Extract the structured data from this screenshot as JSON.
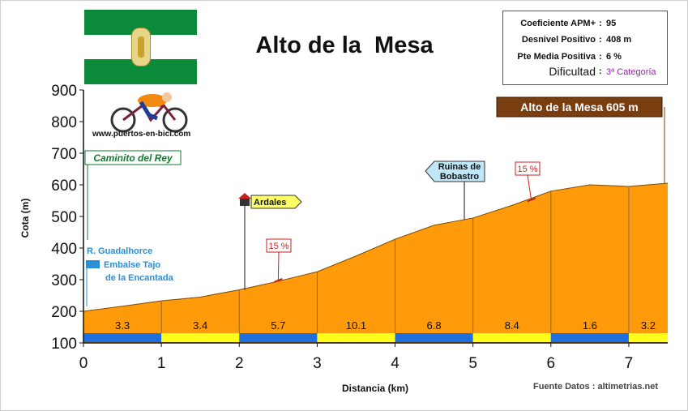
{
  "title": "Alto de la  Mesa",
  "info": {
    "rows": [
      {
        "label": "Coeficiente APM+",
        "sep": ":",
        "value": "95"
      },
      {
        "label": "Desnivel Positivo",
        "sep": ":",
        "value": "408 m"
      },
      {
        "label": "Pte Media Positiva",
        "sep": ":",
        "value": "6 %"
      },
      {
        "label": "Dificultad",
        "sep": ":",
        "value": "3ª Categoría"
      }
    ]
  },
  "logo_text": "www.puertos-en-bici.com",
  "source": "Fuente Datos : altimetrias.net",
  "colors": {
    "profile_fill": "#ff9a0a",
    "summit_box": "#7a3d10",
    "ramp_red": "#cc1f1f",
    "segment_blue": "#1e6fe0",
    "segment_yellow": "#ffff1a",
    "water_blue": "#2a8fd6",
    "trail_green": "#127a2d"
  },
  "chart_data": {
    "type": "area",
    "title": "Alto de la  Mesa",
    "xlabel": "Distancia (km)",
    "ylabel": "Cota (m)",
    "xlim": [
      0,
      7.5
    ],
    "ylim": [
      100,
      900
    ],
    "xticks": [
      "0",
      "1",
      "2",
      "3",
      "4",
      "5",
      "6",
      "7"
    ],
    "yticks": [
      "100",
      "200",
      "300",
      "400",
      "500",
      "600",
      "700",
      "800",
      "900"
    ],
    "grid": false,
    "profile": {
      "x": [
        0,
        0.5,
        1.0,
        1.5,
        2.0,
        2.5,
        3.0,
        3.5,
        4.0,
        4.5,
        5.0,
        5.5,
        6.0,
        6.5,
        7.0,
        7.5
      ],
      "y": [
        200,
        216,
        233,
        245,
        268,
        295,
        325,
        375,
        428,
        472,
        495,
        535,
        580,
        600,
        595,
        605
      ]
    },
    "segments": [
      {
        "x0": 0,
        "x1": 1,
        "label": "3.3"
      },
      {
        "x0": 1,
        "x1": 2,
        "label": "3.4"
      },
      {
        "x0": 2,
        "x1": 3,
        "label": "5.7"
      },
      {
        "x0": 3,
        "x1": 4,
        "label": "10.1"
      },
      {
        "x0": 4,
        "x1": 5,
        "label": "6.8"
      },
      {
        "x0": 5,
        "x1": 6,
        "label": "8.4"
      },
      {
        "x0": 6,
        "x1": 7,
        "label": "1.6"
      },
      {
        "x0": 7,
        "x1": 7.5,
        "label": "3.2"
      }
    ],
    "annotations": [
      {
        "label": "Alto de la Mesa 605 m",
        "x": 7.5,
        "y": 605,
        "kind": "summit"
      },
      {
        "label": "Ruinas de\nBobastro",
        "x": 4.9,
        "y": 490,
        "kind": "flag-left"
      },
      {
        "label": "Ardales",
        "x": 2.05,
        "y": 270,
        "kind": "town"
      },
      {
        "label": "Caminito del Rey",
        "x": 0.05,
        "y": 200,
        "kind": "green-box"
      },
      {
        "label": "R. Guadalhorce",
        "x": 0.05,
        "y": 200,
        "kind": "water"
      },
      {
        "label": "Embalse Tajo\nde la Encantada",
        "x": 0.05,
        "y": 200,
        "kind": "water"
      },
      {
        "label": "15 %",
        "x": 2.5,
        "y": 295,
        "kind": "ramp"
      },
      {
        "label": "15 %",
        "x": 5.75,
        "y": 550,
        "kind": "ramp"
      }
    ]
  }
}
